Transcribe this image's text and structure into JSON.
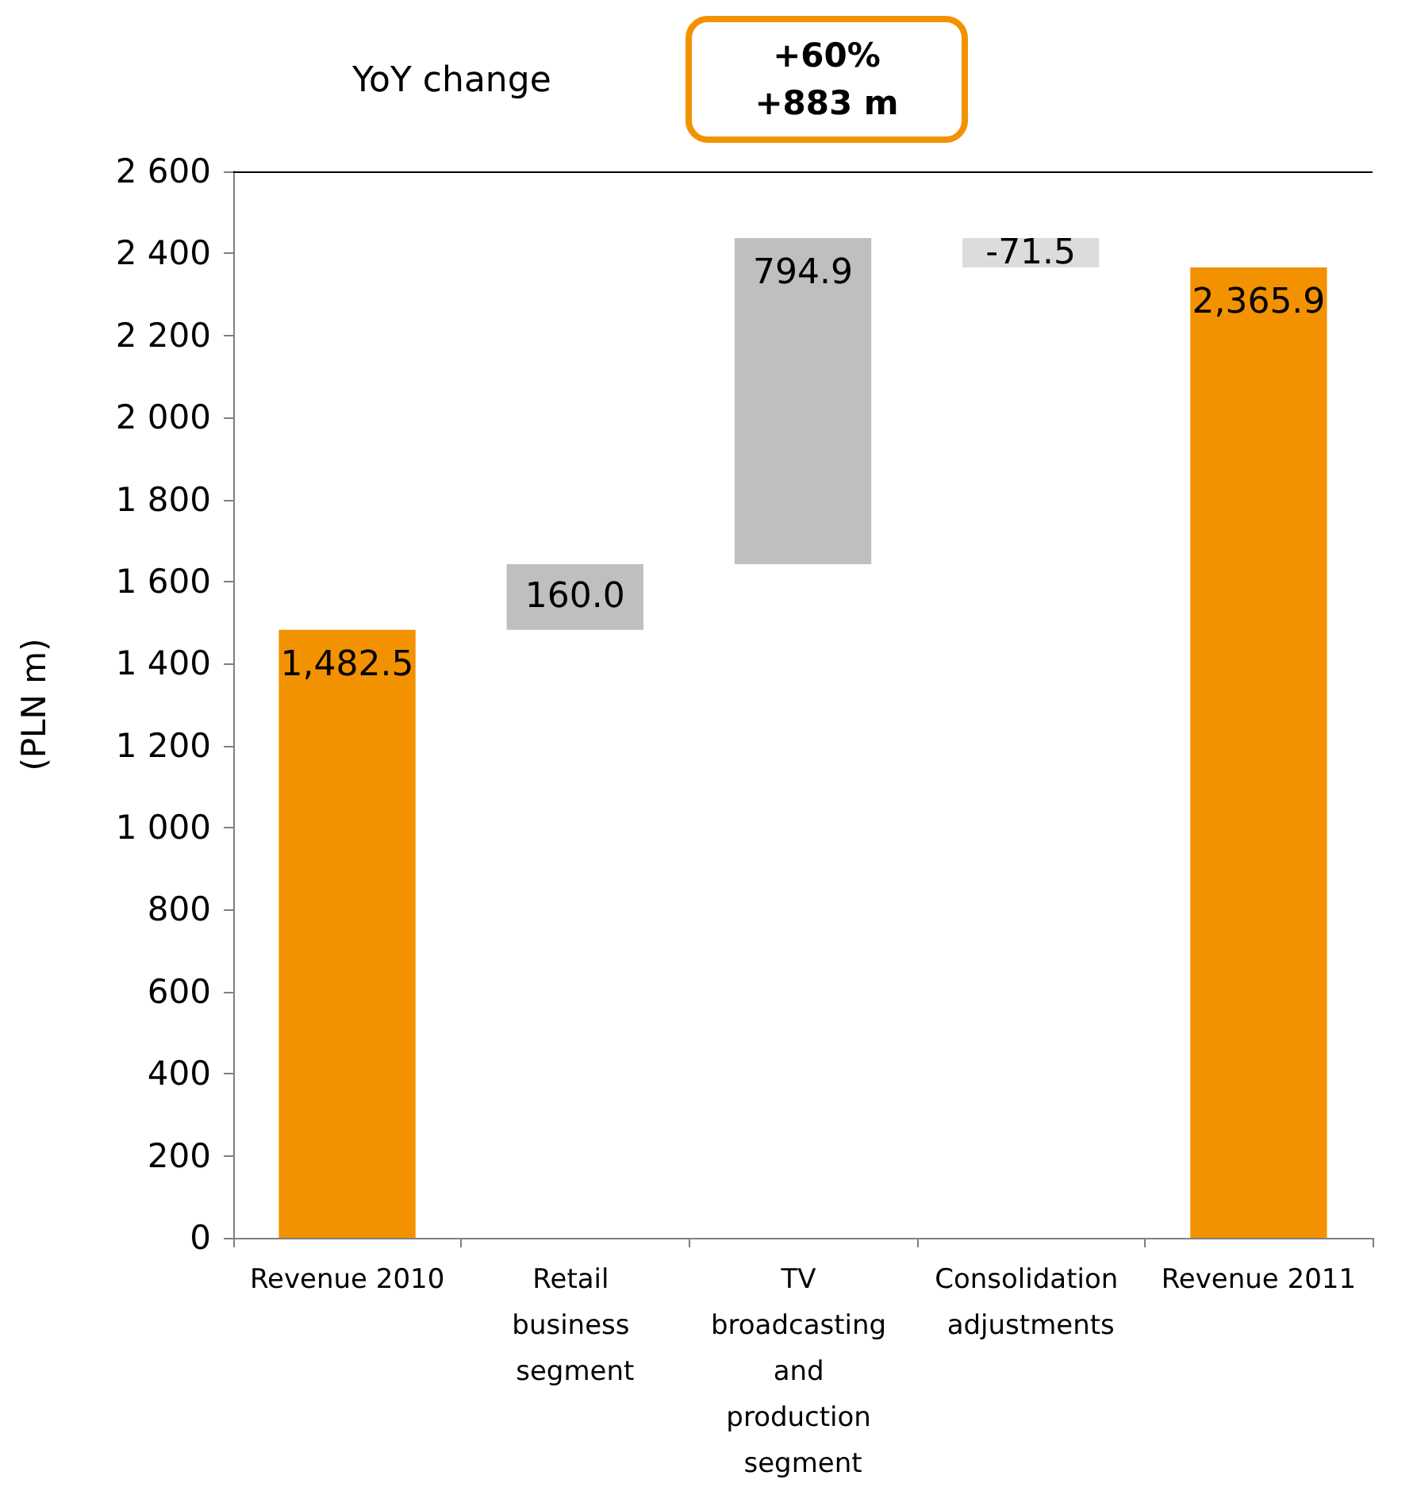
{
  "chart_data": {
    "type": "bar",
    "ylabel": "(PLN m)",
    "categories": [
      "Revenue 2010",
      "Retail business segment",
      "TV broadcasting and production segment",
      "Consolidation adjustments",
      "Revenue 2011"
    ],
    "values": [
      1482.5,
      160.0,
      794.9,
      -71.5,
      2365.9
    ],
    "base": [
      0,
      1482.5,
      1642.5,
      2437.4,
      0
    ],
    "colors": [
      "#f39200",
      "#bfbfbf",
      "#bfbfbf",
      "#dcdcdc",
      "#f39200"
    ],
    "value_labels": [
      "1,482.5",
      "160.0",
      "794.9",
      "-71.5",
      "2,365.9"
    ],
    "ylim": [
      0,
      2600
    ],
    "yticks": [
      {
        "value": 0,
        "label": "0"
      },
      {
        "value": 200,
        "label": "200"
      },
      {
        "value": 400,
        "label": "400"
      },
      {
        "value": 600,
        "label": "600"
      },
      {
        "value": 800,
        "label": "800"
      },
      {
        "value": 1000,
        "label": "1 000"
      },
      {
        "value": 1200,
        "label": "1 200"
      },
      {
        "value": 1400,
        "label": "1 400"
      },
      {
        "value": 1600,
        "label": "1 600"
      },
      {
        "value": 1800,
        "label": "1 800"
      },
      {
        "value": 2000,
        "label": "2 000"
      },
      {
        "value": 2200,
        "label": "2 200"
      },
      {
        "value": 2400,
        "label": "2 400"
      },
      {
        "value": 2600,
        "label": "2 600"
      }
    ],
    "ref_lines": [
      {
        "axis": "y",
        "value": 2600,
        "color": "#000000"
      }
    ],
    "annotations": [
      "YoY change",
      "+60%",
      "+883 m"
    ],
    "grid": false
  }
}
